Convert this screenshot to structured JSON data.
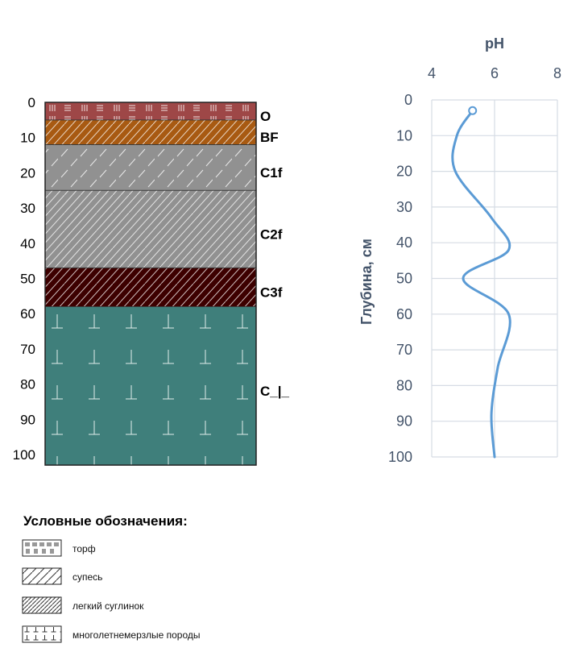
{
  "chart_data": [
    {
      "type": "soil-profile",
      "depth_ticks": [
        0,
        10,
        20,
        30,
        40,
        50,
        60,
        70,
        80,
        90,
        100
      ],
      "ylim": [
        0,
        103
      ],
      "horizons": [
        {
          "name": "O",
          "top": 0,
          "bottom": 5,
          "texture": "torf",
          "color": "#9e4747"
        },
        {
          "name": "BF",
          "top": 5,
          "bottom": 12,
          "texture": "loam",
          "color": "#a85a12"
        },
        {
          "name": "C1f",
          "top": 12,
          "bottom": 25,
          "texture": "sandy-loam",
          "color": "#919191"
        },
        {
          "name": "C2f",
          "top": 25,
          "bottom": 47,
          "texture": "loam",
          "color": "#919191"
        },
        {
          "name": "C3f",
          "top": 47,
          "bottom": 58,
          "texture": "loam",
          "color": "#3d0000"
        },
        {
          "name": "C_|_",
          "top": 58,
          "bottom": 103,
          "texture": "permafrost",
          "color": "#3f7f7b"
        }
      ]
    },
    {
      "type": "line",
      "title": "pH",
      "ylabel": "Глубина, см",
      "xlim": [
        4,
        8
      ],
      "x_ticks": [
        4,
        6,
        8
      ],
      "ylim": [
        0,
        100
      ],
      "y_ticks": [
        0,
        10,
        20,
        30,
        40,
        50,
        60,
        70,
        80,
        90,
        100
      ],
      "y_inverted": true,
      "grid": true,
      "line_color": "#5b9bd5",
      "series": [
        {
          "x": [
            5.3,
            4.8,
            4.75,
            5.9,
            6.45,
            5.0,
            6.45,
            6.1,
            5.9,
            6.0
          ],
          "y": [
            3,
            10,
            20,
            33,
            42,
            50,
            60,
            75,
            88,
            100
          ]
        }
      ]
    }
  ],
  "legend": {
    "title": "Условные обозначения:",
    "items": [
      {
        "key": "torf",
        "label": "торф"
      },
      {
        "key": "sandy-loam",
        "label": "супесь"
      },
      {
        "key": "loam",
        "label": "легкий суглинок"
      },
      {
        "key": "permafrost",
        "label": "многолетнемерзлые породы"
      }
    ]
  }
}
